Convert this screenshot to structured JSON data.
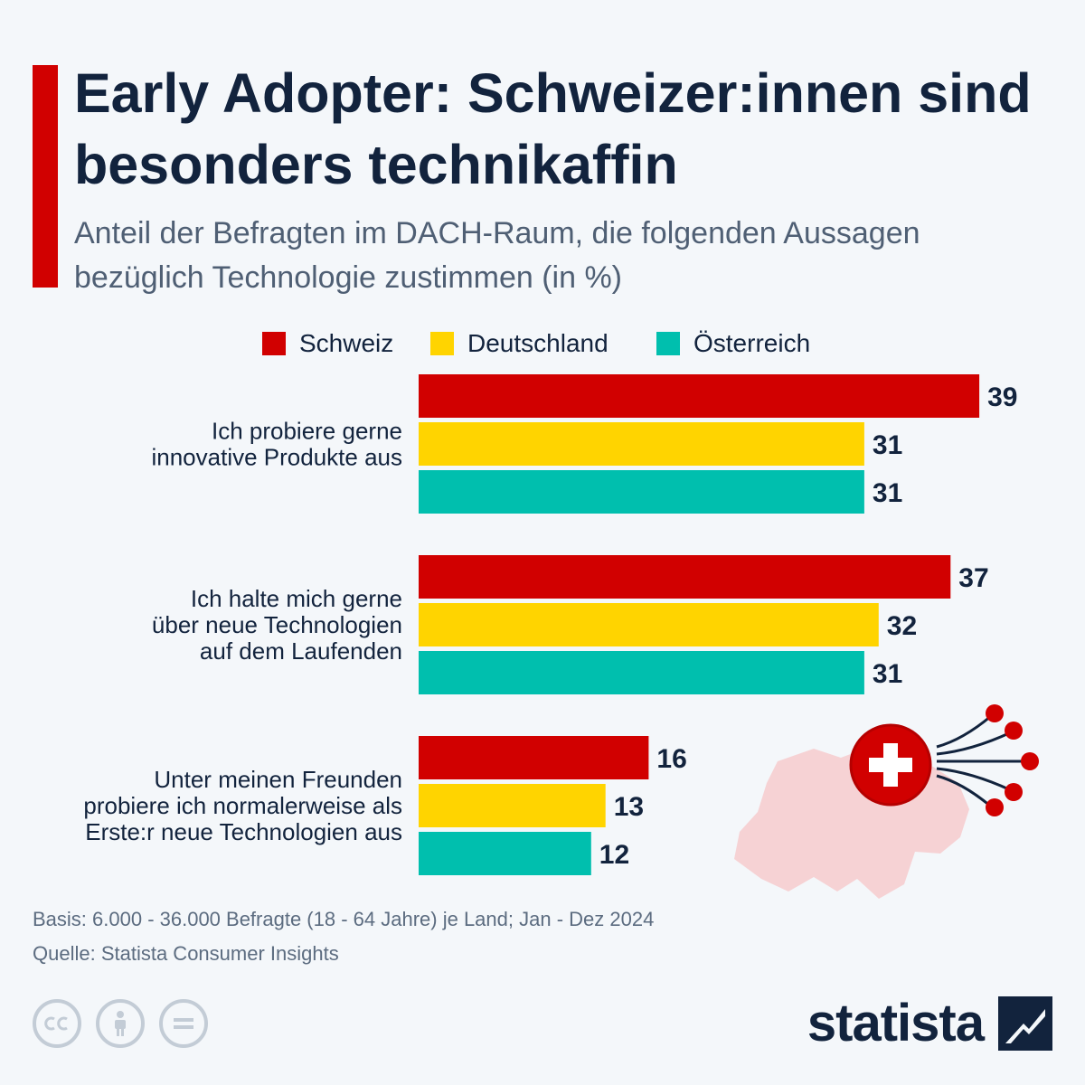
{
  "title": "Early Adopter: Schweizer:innen sind besonders technikaffin",
  "subtitle": "Anteil der Befragten im DACH-Raum, die folgenden Aussagen bezüglich Technologie zustimmen (in %)",
  "colors": {
    "schweiz": "#d10000",
    "deutschland": "#ffd400",
    "oesterreich": "#00bfae",
    "accent": "#d10000",
    "text": "#12233d"
  },
  "chart_data": {
    "type": "bar",
    "orientation": "horizontal",
    "categories": [
      [
        "Ich probiere gerne",
        "innovative Produkte aus"
      ],
      [
        "Ich halte mich gerne",
        "über neue Technologien",
        "auf dem Laufenden"
      ],
      [
        "Unter meinen Freunden",
        "probiere ich normalerweise als",
        "Erste:r neue Technologien aus"
      ]
    ],
    "series": [
      {
        "name": "Schweiz",
        "values": [
          39,
          37,
          16
        ]
      },
      {
        "name": "Deutschland",
        "values": [
          31,
          32,
          13
        ]
      },
      {
        "name": "Österreich",
        "values": [
          31,
          31,
          12
        ]
      }
    ],
    "legend_position": "top"
  },
  "footer": {
    "basis": "Basis: 6.000 - 36.000 Befragte (18 - 64 Jahre) je Land; Jan - Dez 2024",
    "source": "Quelle: Statista Consumer Insights"
  },
  "icons": {
    "cc": "cc-icon",
    "by": "person-icon",
    "nd": "equals-icon",
    "illustration": "swiss-map-icon",
    "brand": "statista-logo-icon"
  },
  "brand": {
    "name": "statista"
  }
}
